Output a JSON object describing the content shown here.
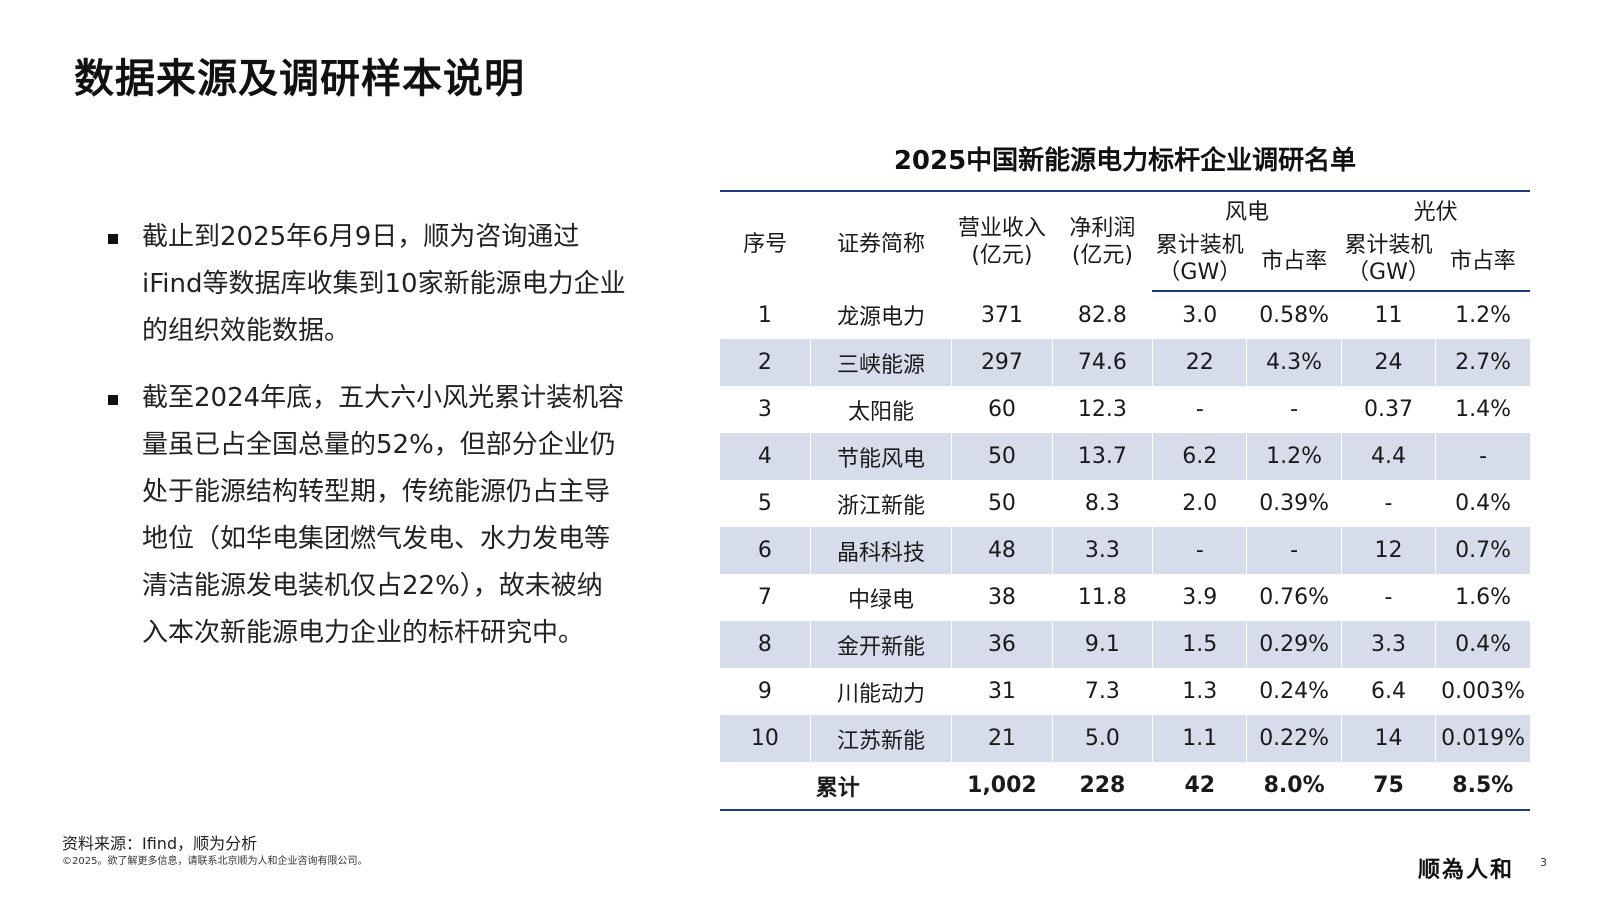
{
  "title": "数据来源及调研样本说明",
  "bullets": [
    "截止到2025年6月9日，顺为咨询通过iFind等数据库收集到10家新能源电力企业的组织效能数据。",
    "截至2024年底，五大六小风光累计装机容量虽已占全国总量的52%，但部分企业仍处于能源结构转型期，传统能源仍占主导地位（如华电集团燃气发电、水力发电等清洁能源发电装机仅占22%），故未被纳入本次新能源电力企业的标杆研究中。"
  ],
  "table": {
    "title": "2025中国新能源电力标杆企业调研名单",
    "headers": {
      "index": "序号",
      "name": "证券简称",
      "revenue": "营业收入\n(亿元)",
      "profit": "净利润\n(亿元)",
      "wind": "风电",
      "solar": "光伏",
      "capacity": "累计装机\n（GW）",
      "share": "市占率"
    },
    "rows": [
      [
        "1",
        "龙源电力",
        "371",
        "82.8",
        "3.0",
        "0.58%",
        "11",
        "1.2%"
      ],
      [
        "2",
        "三峡能源",
        "297",
        "74.6",
        "22",
        "4.3%",
        "24",
        "2.7%"
      ],
      [
        "3",
        "太阳能",
        "60",
        "12.3",
        "-",
        "-",
        "0.37",
        "1.4%"
      ],
      [
        "4",
        "节能风电",
        "50",
        "13.7",
        "6.2",
        "1.2%",
        "4.4",
        "-"
      ],
      [
        "5",
        "浙江新能",
        "50",
        "8.3",
        "2.0",
        "0.39%",
        "-",
        "0.4%"
      ],
      [
        "6",
        "晶科科技",
        "48",
        "3.3",
        "-",
        "-",
        "12",
        "0.7%"
      ],
      [
        "7",
        "中绿电",
        "38",
        "11.8",
        "3.9",
        "0.76%",
        "-",
        "1.6%"
      ],
      [
        "8",
        "金开新能",
        "36",
        "9.1",
        "1.5",
        "0.29%",
        "3.3",
        "0.4%"
      ],
      [
        "9",
        "川能动力",
        "31",
        "7.3",
        "1.3",
        "0.24%",
        "6.4",
        "0.003%"
      ],
      [
        "10",
        "江苏新能",
        "21",
        "5.0",
        "1.1",
        "0.22%",
        "14",
        "0.019%"
      ]
    ],
    "total": [
      "累计",
      "1,002",
      "228",
      "42",
      "8.0%",
      "75",
      "8.5%"
    ]
  },
  "footer": {
    "source": "资料来源：Ifind，顺为分析",
    "copyright": "©2025。欲了解更多信息，请联系北京顺为人和企业咨询有限公司。",
    "logo": "顺為人和",
    "page": "3"
  },
  "colors": {
    "accent": "#1f3a7a",
    "row_shade": "#d6dcea"
  }
}
